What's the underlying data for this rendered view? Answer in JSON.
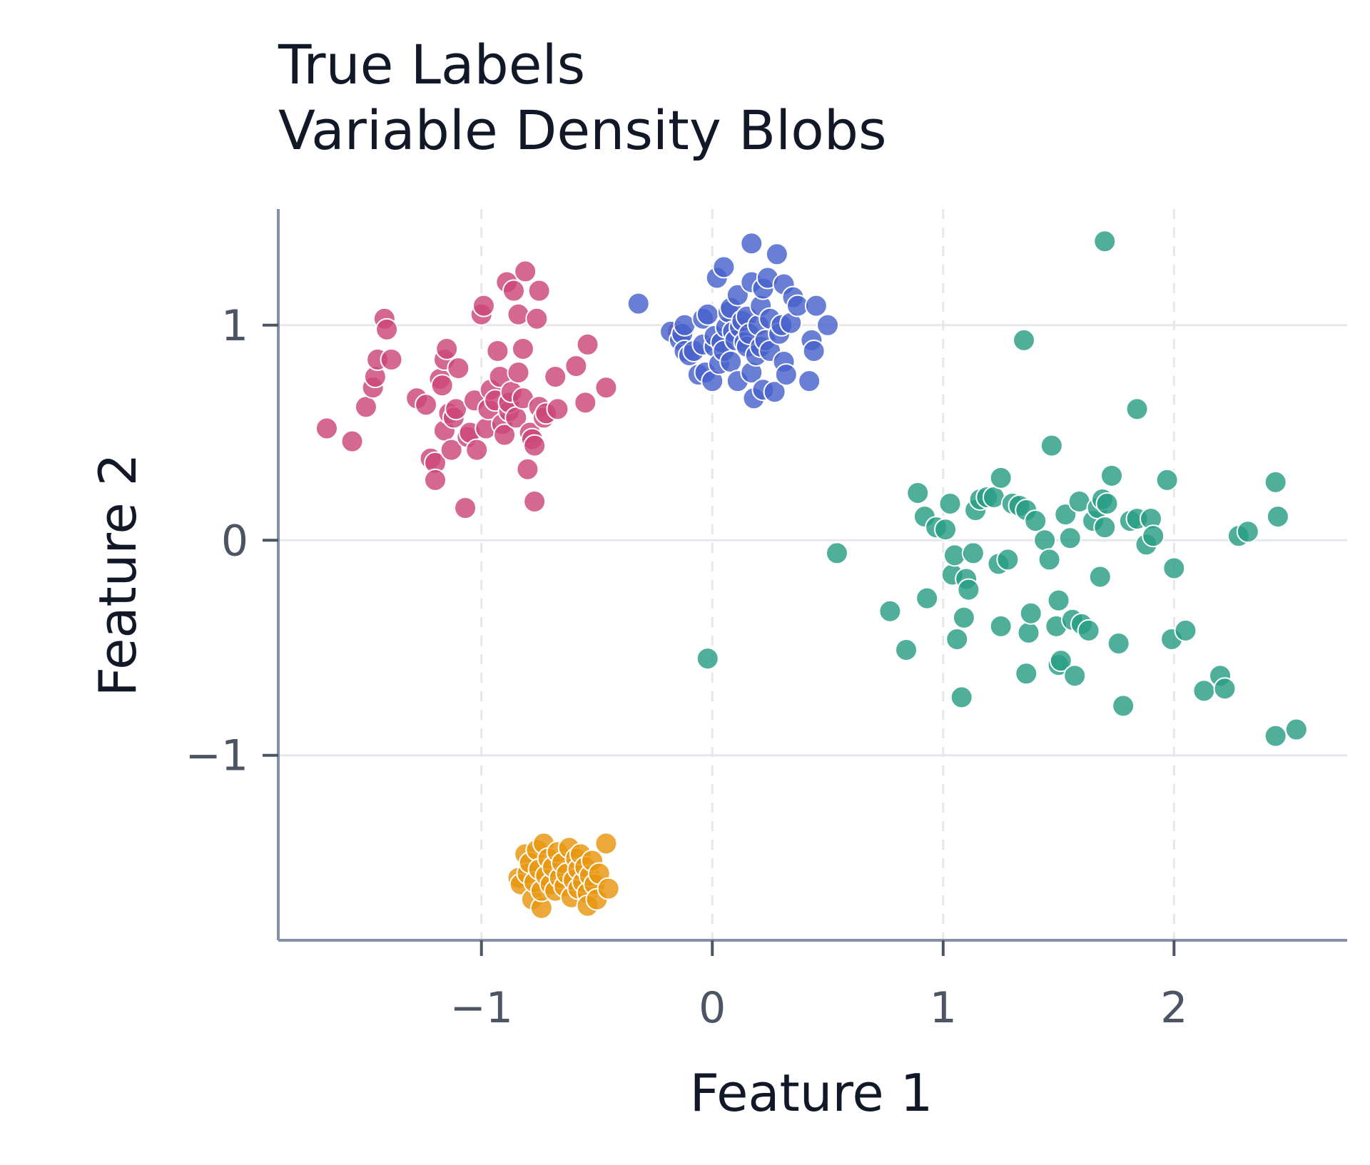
{
  "chart_data": {
    "type": "scatter",
    "title": "True Labels",
    "subtitle": "Variable Density Blobs",
    "xlabel": "Feature 1",
    "ylabel": "Feature 2",
    "xlim": [
      -1.88,
      2.75
    ],
    "ylim": [
      -1.86,
      1.54
    ],
    "xticks": [
      -1,
      0,
      1,
      2
    ],
    "yticks": [
      -1,
      0,
      1
    ],
    "xtick_labels": [
      "−1",
      "0",
      "1",
      "2"
    ],
    "ytick_labels": [
      "−1",
      "0",
      "1"
    ],
    "grid": true,
    "series": [
      {
        "color": "#cc4778",
        "points": [
          [
            -1.67,
            0.52
          ],
          [
            -1.56,
            0.46
          ],
          [
            -1.5,
            0.62
          ],
          [
            -1.47,
            0.71
          ],
          [
            -1.46,
            0.76
          ],
          [
            -1.45,
            0.84
          ],
          [
            -1.42,
            1.03
          ],
          [
            -1.41,
            0.98
          ],
          [
            -1.39,
            0.84
          ],
          [
            -1.28,
            0.66
          ],
          [
            -1.24,
            0.63
          ],
          [
            -1.22,
            0.38
          ],
          [
            -1.2,
            0.36
          ],
          [
            -1.2,
            0.28
          ],
          [
            -1.18,
            0.75
          ],
          [
            -1.17,
            0.72
          ],
          [
            -1.16,
            0.84
          ],
          [
            -1.16,
            0.51
          ],
          [
            -1.15,
            0.89
          ],
          [
            -1.14,
            0.59
          ],
          [
            -1.13,
            0.42
          ],
          [
            -1.12,
            0.57
          ],
          [
            -1.11,
            0.61
          ],
          [
            -1.1,
            0.8
          ],
          [
            -1.07,
            0.15
          ],
          [
            -1.06,
            0.48
          ],
          [
            -1.05,
            0.5
          ],
          [
            -1.03,
            0.65
          ],
          [
            -1.02,
            0.42
          ],
          [
            -1.0,
            1.05
          ],
          [
            -0.99,
            1.09
          ],
          [
            -0.98,
            0.52
          ],
          [
            -0.97,
            0.61
          ],
          [
            -0.96,
            0.7
          ],
          [
            -0.94,
            0.65
          ],
          [
            -0.93,
            0.88
          ],
          [
            -0.92,
            0.76
          ],
          [
            -0.91,
            0.54
          ],
          [
            -0.9,
            0.49
          ],
          [
            -0.89,
            1.2
          ],
          [
            -0.88,
            0.6
          ],
          [
            -0.88,
            0.64
          ],
          [
            -0.87,
            0.69
          ],
          [
            -0.86,
            1.16
          ],
          [
            -0.85,
            0.57
          ],
          [
            -0.84,
            0.78
          ],
          [
            -0.84,
            1.05
          ],
          [
            -0.82,
            0.89
          ],
          [
            -0.82,
            0.66
          ],
          [
            -0.81,
            1.25
          ],
          [
            -0.8,
            0.33
          ],
          [
            -0.79,
            0.5
          ],
          [
            -0.78,
            0.47
          ],
          [
            -0.77,
            0.18
          ],
          [
            -0.77,
            0.44
          ],
          [
            -0.76,
            1.03
          ],
          [
            -0.75,
            1.16
          ],
          [
            -0.75,
            0.62
          ],
          [
            -0.73,
            0.57
          ],
          [
            -0.72,
            0.59
          ],
          [
            -0.68,
            0.76
          ],
          [
            -0.67,
            0.61
          ],
          [
            -0.59,
            0.81
          ],
          [
            -0.55,
            0.64
          ],
          [
            -0.54,
            0.91
          ],
          [
            -0.46,
            0.71
          ],
          [
            -0.15,
            0.97
          ]
        ]
      },
      {
        "color": "#4862cc",
        "points": [
          [
            -0.32,
            1.1
          ],
          [
            -0.18,
            0.97
          ],
          [
            -0.14,
            0.93
          ],
          [
            -0.13,
            0.96
          ],
          [
            -0.12,
            0.88
          ],
          [
            -0.12,
            1.0
          ],
          [
            -0.1,
            0.86
          ],
          [
            -0.08,
            0.88
          ],
          [
            -0.06,
            0.77
          ],
          [
            -0.04,
            0.91
          ],
          [
            -0.04,
            1.03
          ],
          [
            -0.03,
            0.78
          ],
          [
            -0.02,
            1.05
          ],
          [
            0.0,
            0.74
          ],
          [
            0.01,
            0.9
          ],
          [
            0.01,
            0.95
          ],
          [
            0.02,
            1.22
          ],
          [
            0.03,
            0.82
          ],
          [
            0.04,
            0.92
          ],
          [
            0.05,
            0.88
          ],
          [
            0.05,
            1.27
          ],
          [
            0.06,
            0.99
          ],
          [
            0.07,
            1.06
          ],
          [
            0.08,
            1.08
          ],
          [
            0.08,
            0.83
          ],
          [
            0.09,
            0.97
          ],
          [
            0.1,
            0.93
          ],
          [
            0.11,
            1.14
          ],
          [
            0.11,
            0.74
          ],
          [
            0.12,
            0.99
          ],
          [
            0.13,
            1.02
          ],
          [
            0.14,
            0.92
          ],
          [
            0.15,
            1.04
          ],
          [
            0.15,
            0.9
          ],
          [
            0.16,
            0.96
          ],
          [
            0.17,
            1.38
          ],
          [
            0.17,
            0.78
          ],
          [
            0.17,
            1.2
          ],
          [
            0.18,
            0.66
          ],
          [
            0.19,
            0.86
          ],
          [
            0.2,
            1.0
          ],
          [
            0.21,
            0.9
          ],
          [
            0.21,
            1.09
          ],
          [
            0.22,
            0.7
          ],
          [
            0.22,
            1.17
          ],
          [
            0.23,
            0.93
          ],
          [
            0.24,
            1.22
          ],
          [
            0.25,
            0.88
          ],
          [
            0.25,
            1.03
          ],
          [
            0.27,
            0.69
          ],
          [
            0.28,
            1.33
          ],
          [
            0.29,
            0.96
          ],
          [
            0.3,
            1.0
          ],
          [
            0.31,
            1.19
          ],
          [
            0.31,
            0.83
          ],
          [
            0.32,
            0.77
          ],
          [
            0.34,
            1.01
          ],
          [
            0.35,
            1.13
          ],
          [
            0.37,
            1.09
          ],
          [
            0.42,
            0.74
          ],
          [
            0.43,
            0.93
          ],
          [
            0.44,
            0.88
          ],
          [
            0.45,
            1.09
          ],
          [
            0.5,
            1.0
          ]
        ]
      },
      {
        "color": "#2a9d85",
        "points": [
          [
            0.54,
            -0.06
          ],
          [
            -0.02,
            -0.55
          ],
          [
            0.77,
            -0.33
          ],
          [
            0.84,
            -0.51
          ],
          [
            0.89,
            0.22
          ],
          [
            0.92,
            0.11
          ],
          [
            0.93,
            -0.27
          ],
          [
            0.97,
            0.06
          ],
          [
            1.01,
            0.05
          ],
          [
            1.03,
            0.17
          ],
          [
            1.04,
            -0.16
          ],
          [
            1.05,
            -0.07
          ],
          [
            1.06,
            -0.46
          ],
          [
            1.08,
            -0.73
          ],
          [
            1.09,
            -0.36
          ],
          [
            1.1,
            -0.18
          ],
          [
            1.11,
            -0.23
          ],
          [
            1.13,
            -0.06
          ],
          [
            1.14,
            0.14
          ],
          [
            1.16,
            0.19
          ],
          [
            1.19,
            0.2
          ],
          [
            1.22,
            0.2
          ],
          [
            1.24,
            -0.11
          ],
          [
            1.25,
            0.29
          ],
          [
            1.25,
            -0.4
          ],
          [
            1.28,
            -0.09
          ],
          [
            1.3,
            0.17
          ],
          [
            1.33,
            0.16
          ],
          [
            1.35,
            0.93
          ],
          [
            1.36,
            0.14
          ],
          [
            1.36,
            -0.62
          ],
          [
            1.37,
            -0.43
          ],
          [
            1.38,
            -0.34
          ],
          [
            1.4,
            0.09
          ],
          [
            1.44,
            0.0
          ],
          [
            1.46,
            -0.09
          ],
          [
            1.47,
            0.44
          ],
          [
            1.49,
            -0.4
          ],
          [
            1.5,
            -0.28
          ],
          [
            1.5,
            -0.58
          ],
          [
            1.51,
            -0.56
          ],
          [
            1.53,
            0.12
          ],
          [
            1.55,
            0.01
          ],
          [
            1.56,
            -0.37
          ],
          [
            1.57,
            -0.63
          ],
          [
            1.59,
            0.18
          ],
          [
            1.6,
            -0.39
          ],
          [
            1.63,
            -0.42
          ],
          [
            1.65,
            0.09
          ],
          [
            1.67,
            0.15
          ],
          [
            1.68,
            -0.17
          ],
          [
            1.69,
            0.19
          ],
          [
            1.7,
            0.06
          ],
          [
            1.7,
            1.39
          ],
          [
            1.71,
            0.17
          ],
          [
            1.73,
            0.3
          ],
          [
            1.76,
            -0.48
          ],
          [
            1.78,
            -0.77
          ],
          [
            1.81,
            0.09
          ],
          [
            1.84,
            0.61
          ],
          [
            1.84,
            0.1
          ],
          [
            1.88,
            -0.02
          ],
          [
            1.9,
            0.1
          ],
          [
            1.91,
            0.02
          ],
          [
            1.97,
            0.28
          ],
          [
            1.99,
            -0.46
          ],
          [
            2.0,
            -0.13
          ],
          [
            2.05,
            -0.42
          ],
          [
            2.13,
            -0.7
          ],
          [
            2.2,
            -0.63
          ],
          [
            2.22,
            -0.69
          ],
          [
            2.28,
            0.02
          ],
          [
            2.32,
            0.04
          ],
          [
            2.44,
            0.27
          ],
          [
            2.45,
            0.11
          ],
          [
            2.44,
            -0.91
          ],
          [
            2.53,
            -0.88
          ]
        ]
      },
      {
        "color": "#e8960f",
        "points": [
          [
            -0.84,
            -1.57
          ],
          [
            -0.83,
            -1.6
          ],
          [
            -0.81,
            -1.46
          ],
          [
            -0.8,
            -1.55
          ],
          [
            -0.79,
            -1.5
          ],
          [
            -0.78,
            -1.67
          ],
          [
            -0.77,
            -1.59
          ],
          [
            -0.76,
            -1.44
          ],
          [
            -0.75,
            -1.53
          ],
          [
            -0.74,
            -1.71
          ],
          [
            -0.74,
            -1.63
          ],
          [
            -0.73,
            -1.41
          ],
          [
            -0.72,
            -1.56
          ],
          [
            -0.71,
            -1.48
          ],
          [
            -0.7,
            -1.6
          ],
          [
            -0.69,
            -1.52
          ],
          [
            -0.68,
            -1.63
          ],
          [
            -0.67,
            -1.45
          ],
          [
            -0.66,
            -1.57
          ],
          [
            -0.65,
            -1.5
          ],
          [
            -0.64,
            -1.61
          ],
          [
            -0.63,
            -1.55
          ],
          [
            -0.62,
            -1.43
          ],
          [
            -0.61,
            -1.66
          ],
          [
            -0.6,
            -1.58
          ],
          [
            -0.59,
            -1.48
          ],
          [
            -0.58,
            -1.62
          ],
          [
            -0.58,
            -1.53
          ],
          [
            -0.57,
            -1.46
          ],
          [
            -0.56,
            -1.59
          ],
          [
            -0.55,
            -1.52
          ],
          [
            -0.54,
            -1.64
          ],
          [
            -0.54,
            -1.7
          ],
          [
            -0.53,
            -1.56
          ],
          [
            -0.52,
            -1.49
          ],
          [
            -0.51,
            -1.6
          ],
          [
            -0.5,
            -1.67
          ],
          [
            -0.49,
            -1.55
          ],
          [
            -0.46,
            -1.41
          ],
          [
            -0.45,
            -1.62
          ]
        ]
      }
    ]
  }
}
